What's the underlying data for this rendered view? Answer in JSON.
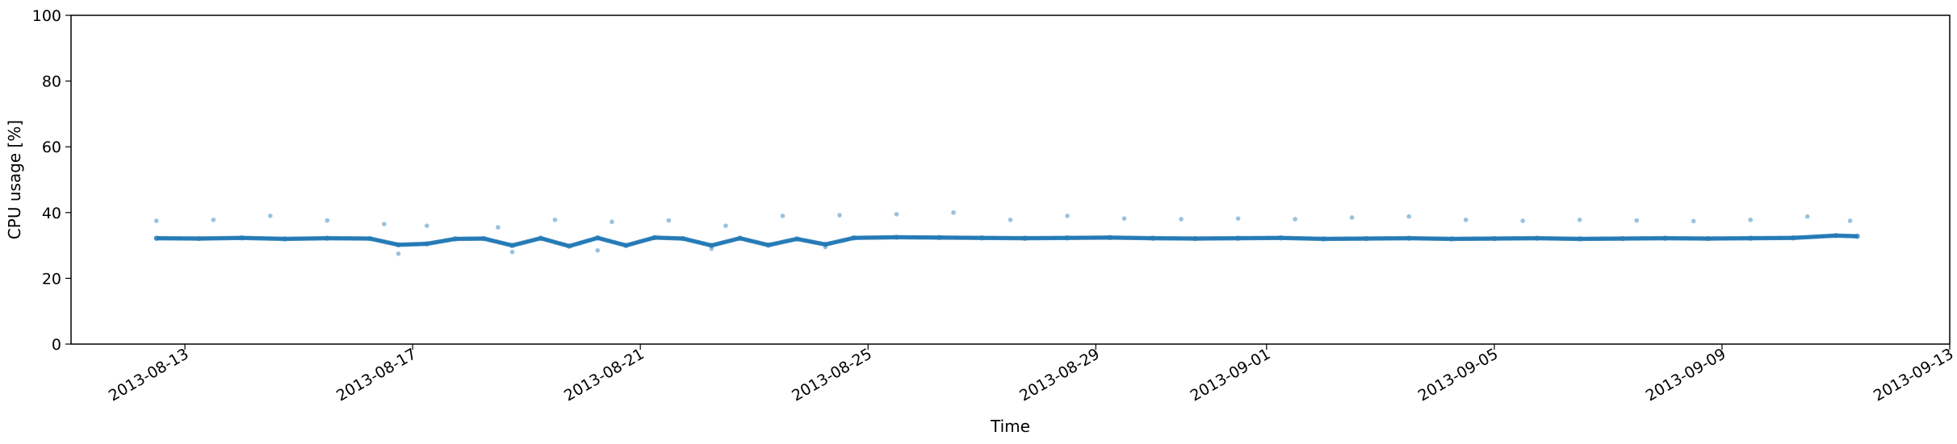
{
  "chart_data": {
    "type": "scatter",
    "title": "",
    "xlabel": "Time",
    "ylabel": "CPU usage [%]",
    "xlim": [
      "2013-08-11",
      "2013-09-13"
    ],
    "ylim": [
      0,
      100
    ],
    "grid": false,
    "color": "#1f77b4",
    "x_ticks": [
      {
        "date": "2013-08-13",
        "label": "2013-08-13"
      },
      {
        "date": "2013-08-17",
        "label": "2013-08-17"
      },
      {
        "date": "2013-08-21",
        "label": "2013-08-21"
      },
      {
        "date": "2013-08-25",
        "label": "2013-08-25"
      },
      {
        "date": "2013-08-29",
        "label": "2013-08-29"
      },
      {
        "date": "2013-09-01",
        "label": "2013-09-01"
      },
      {
        "date": "2013-09-05",
        "label": "2013-09-05"
      },
      {
        "date": "2013-09-09",
        "label": "2013-09-09"
      },
      {
        "date": "2013-09-13",
        "label": "2013-09-13"
      }
    ],
    "y_ticks": [
      0,
      20,
      40,
      60,
      80,
      100
    ],
    "series": [
      {
        "x": [
          "2013-08-12 12:00",
          "2013-08-13 06:00",
          "2013-08-14 00:00",
          "2013-08-14 18:00",
          "2013-08-15 12:00",
          "2013-08-16 06:00",
          "2013-08-16 18:00",
          "2013-08-17 06:00",
          "2013-08-17 18:00",
          "2013-08-18 06:00",
          "2013-08-18 18:00",
          "2013-08-19 06:00",
          "2013-08-19 18:00",
          "2013-08-20 06:00",
          "2013-08-20 18:00",
          "2013-08-21 06:00",
          "2013-08-21 18:00",
          "2013-08-22 06:00",
          "2013-08-22 18:00",
          "2013-08-23 06:00",
          "2013-08-23 18:00",
          "2013-08-24 06:00",
          "2013-08-24 18:00",
          "2013-08-25 12:00",
          "2013-08-26 06:00",
          "2013-08-27 00:00",
          "2013-08-27 18:00",
          "2013-08-28 12:00",
          "2013-08-29 06:00",
          "2013-08-30 00:00",
          "2013-08-30 18:00",
          "2013-08-31 12:00",
          "2013-09-01 06:00",
          "2013-09-02 00:00",
          "2013-09-02 18:00",
          "2013-09-03 12:00",
          "2013-09-04 06:00",
          "2013-09-05 00:00",
          "2013-09-05 18:00",
          "2013-09-06 12:00",
          "2013-09-07 06:00",
          "2013-09-08 00:00",
          "2013-09-08 18:00",
          "2013-09-09 12:00",
          "2013-09-10 06:00",
          "2013-09-11 00:00",
          "2013-09-11 09:00"
        ],
        "y": [
          32.2,
          32.1,
          32.3,
          32.0,
          32.2,
          32.1,
          30.2,
          30.5,
          32.0,
          32.1,
          30.0,
          32.2,
          29.8,
          32.3,
          30.0,
          32.4,
          32.1,
          30.0,
          32.2,
          30.1,
          32.0,
          30.3,
          32.3,
          32.5,
          32.4,
          32.3,
          32.2,
          32.3,
          32.4,
          32.2,
          32.1,
          32.2,
          32.3,
          32.0,
          32.1,
          32.2,
          32.0,
          32.1,
          32.2,
          32.0,
          32.1,
          32.2,
          32.1,
          32.2,
          32.3,
          33.0,
          32.8
        ]
      }
    ],
    "outliers": {
      "x": [
        "2013-08-12 12:00",
        "2013-08-13 12:00",
        "2013-08-14 12:00",
        "2013-08-15 12:00",
        "2013-08-16 12:00",
        "2013-08-17 06:00",
        "2013-08-18 12:00",
        "2013-08-19 12:00",
        "2013-08-20 12:00",
        "2013-08-21 12:00",
        "2013-08-22 12:00",
        "2013-08-23 12:00",
        "2013-08-24 12:00",
        "2013-08-25 12:00",
        "2013-08-26 12:00",
        "2013-08-27 12:00",
        "2013-08-28 12:00",
        "2013-08-29 12:00",
        "2013-08-30 12:00",
        "2013-08-31 12:00",
        "2013-09-01 12:00",
        "2013-09-02 12:00",
        "2013-09-03 12:00",
        "2013-09-04 12:00",
        "2013-09-05 12:00",
        "2013-09-06 12:00",
        "2013-09-07 12:00",
        "2013-09-08 12:00",
        "2013-09-09 12:00",
        "2013-09-10 12:00",
        "2013-09-11 06:00",
        "2013-08-16 18:00",
        "2013-08-18 18:00",
        "2013-08-20 06:00",
        "2013-08-22 06:00",
        "2013-08-24 06:00"
      ],
      "y": [
        37.5,
        37.8,
        39.0,
        37.6,
        36.5,
        36.0,
        35.5,
        37.8,
        37.2,
        37.6,
        36.0,
        39.0,
        39.2,
        39.5,
        40.0,
        37.8,
        39.0,
        38.2,
        38.0,
        38.2,
        38.0,
        38.5,
        38.8,
        37.8,
        37.5,
        37.8,
        37.6,
        37.4,
        37.8,
        38.8,
        37.5,
        27.5,
        28.0,
        28.5,
        29.0,
        29.5
      ]
    }
  }
}
